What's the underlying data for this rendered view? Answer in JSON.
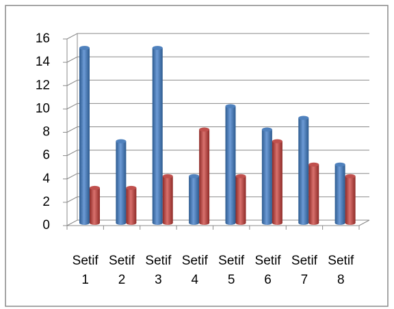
{
  "chart_data": {
    "type": "bar",
    "categories": [
      "Setif 1",
      "Setif 2",
      "Setif 3",
      "Setif 4",
      "Setif 5",
      "Setif 6",
      "Setif 7",
      "Setif 8"
    ],
    "series": [
      {
        "color": "#4f81bd",
        "values": [
          15,
          7,
          15,
          4,
          10,
          8,
          9,
          5
        ]
      },
      {
        "color": "#c0504d",
        "values": [
          3,
          3,
          4,
          8,
          4,
          7,
          5,
          4
        ]
      }
    ],
    "ylim": [
      0,
      16
    ],
    "yticks": [
      0,
      2,
      4,
      6,
      8,
      10,
      12,
      14,
      16
    ],
    "grid": true
  }
}
